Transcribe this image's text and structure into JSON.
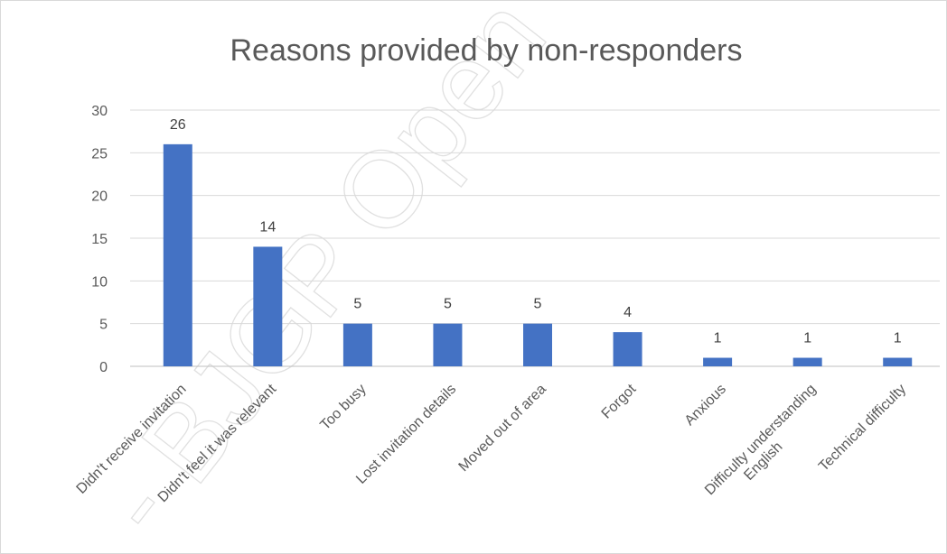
{
  "chart_data": {
    "type": "bar",
    "title": "Reasons provided by non-responders",
    "categories": [
      "Didn't receive invitation",
      "Didn't feel it was relevant",
      "Too busy",
      "Lost invitation details",
      "Moved out of area",
      "Forgot",
      "Anxious",
      "Difficulty understanding English",
      "Technical difficulty"
    ],
    "values": [
      26,
      14,
      5,
      5,
      5,
      4,
      1,
      1,
      1
    ],
    "ylim": [
      0,
      30
    ],
    "yticks": [
      "0",
      "5",
      "10",
      "15",
      "20",
      "25",
      "30"
    ],
    "grid": true,
    "data_labels": true,
    "bar_color": "#4472C4",
    "watermark": "- BJGP Open - BJGP Open -"
  }
}
